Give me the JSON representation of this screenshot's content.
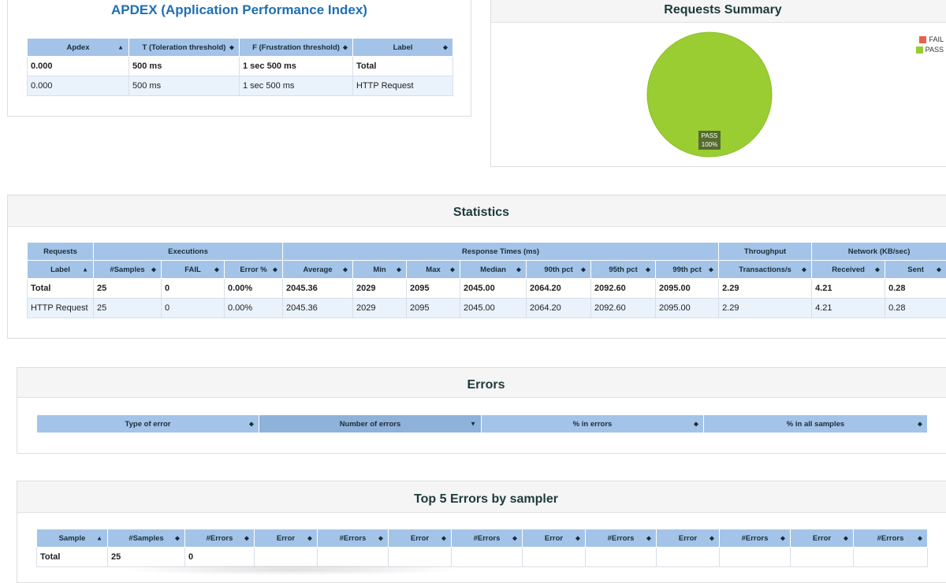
{
  "apdex": {
    "title": "APDEX (Application Performance Index)",
    "headers": [
      "Apdex",
      "T (Toleration threshold)",
      "F (Frustration threshold)",
      "Label"
    ],
    "header_arrows": [
      "▲",
      "◆",
      "◆",
      "◆"
    ],
    "rows": [
      [
        "0.000",
        "500 ms",
        "1 sec 500 ms",
        "Total"
      ],
      [
        "0.000",
        "500 ms",
        "1 sec 500 ms",
        "HTTP Request"
      ]
    ]
  },
  "summary": {
    "title": "Requests Summary",
    "legend": [
      {
        "label": "FAIL",
        "color": "#e8614a"
      },
      {
        "label": "PASS",
        "color": "#9acd32"
      }
    ],
    "pie": {
      "label": "PASS",
      "percent_label": "100%",
      "pass_fraction": 1.0,
      "color": "#9acd32"
    }
  },
  "statistics": {
    "title": "Statistics",
    "groups": [
      "Requests",
      "Executions",
      "Response Times (ms)",
      "Throughput",
      "Network (KB/sec)"
    ],
    "headers": [
      "Label",
      "#Samples",
      "FAIL",
      "Error %",
      "Average",
      "Min",
      "Max",
      "Median",
      "90th pct",
      "95th pct",
      "99th pct",
      "Transactions/s",
      "Received",
      "Sent"
    ],
    "header_arrows": [
      "▲",
      "◆",
      "◆",
      "◆",
      "◆",
      "◆",
      "◆",
      "◆",
      "◆",
      "◆",
      "◆",
      "◆",
      "◆",
      "◆"
    ],
    "rows": [
      [
        "Total",
        "25",
        "0",
        "0.00%",
        "2045.36",
        "2029",
        "2095",
        "2045.00",
        "2064.20",
        "2092.60",
        "2095.00",
        "2.29",
        "4.21",
        "0.28"
      ],
      [
        "HTTP Request",
        "25",
        "0",
        "0.00%",
        "2045.36",
        "2029",
        "2095",
        "2045.00",
        "2064.20",
        "2092.60",
        "2095.00",
        "2.29",
        "4.21",
        "0.28"
      ]
    ]
  },
  "errors": {
    "title": "Errors",
    "headers": [
      "Type of error",
      "Number of errors",
      "% in errors",
      "% in all samples"
    ],
    "header_arrows": [
      "◆",
      "▼",
      "◆",
      "◆"
    ]
  },
  "top5": {
    "title": "Top 5 Errors by sampler",
    "headers": [
      "Sample",
      "#Samples",
      "#Errors",
      "Error",
      "#Errors",
      "Error",
      "#Errors",
      "Error",
      "#Errors",
      "Error",
      "#Errors",
      "Error",
      "#Errors"
    ],
    "header_arrows": [
      "▲",
      "◆",
      "◆",
      "◆",
      "◆",
      "◆",
      "◆",
      "◆",
      "◆",
      "◆",
      "◆",
      "◆",
      "◆"
    ],
    "rows": [
      [
        "Total",
        "25",
        "0",
        "",
        "",
        "",
        "",
        "",
        "",
        "",
        "",
        "",
        ""
      ]
    ]
  }
}
